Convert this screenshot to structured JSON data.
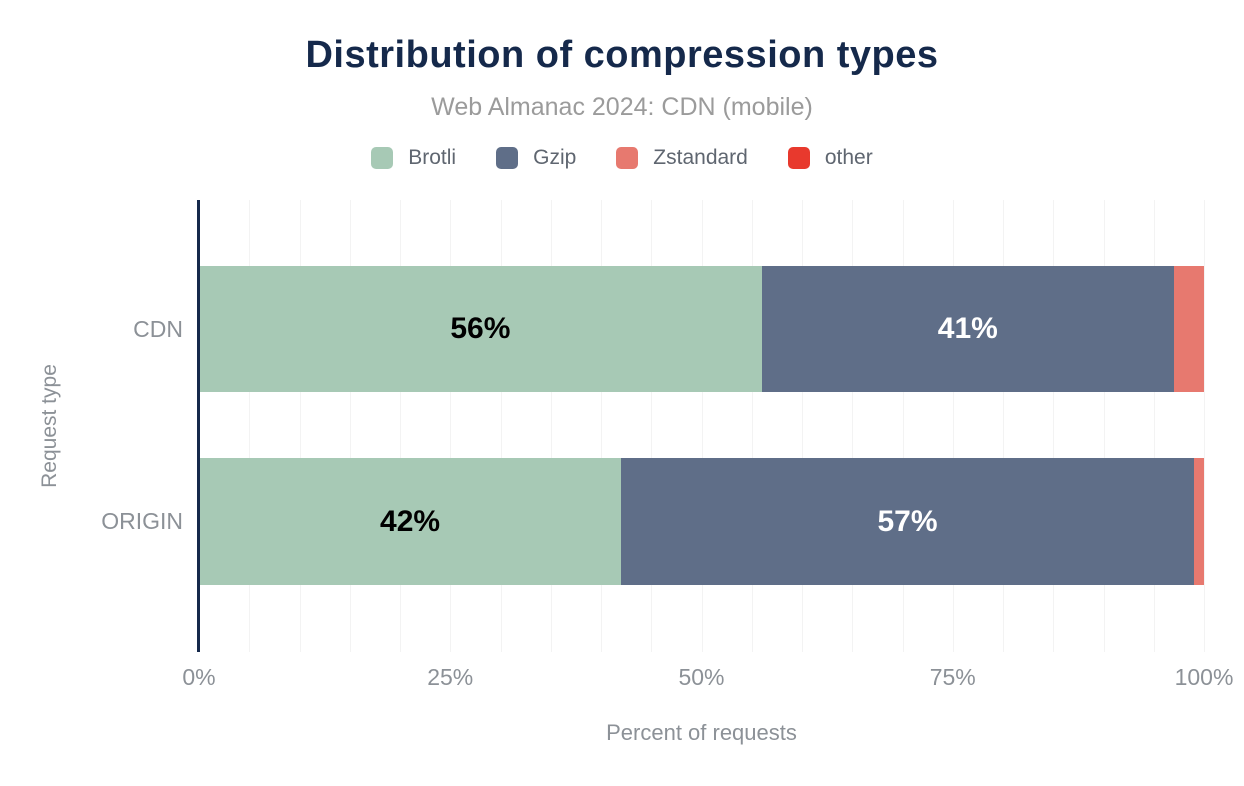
{
  "chart_data": {
    "type": "bar",
    "orientation": "horizontal",
    "stacked": true,
    "title": "Distribution of compression types",
    "subtitle": "Web Almanac 2024: CDN (mobile)",
    "categories": [
      "CDN",
      "ORIGIN"
    ],
    "series": [
      {
        "name": "Brotli",
        "color": "#a7c9b5",
        "values": [
          56,
          42
        ],
        "data_labels": [
          "56%",
          "42%"
        ],
        "label_color": "#000000"
      },
      {
        "name": "Gzip",
        "color": "#5f6e88",
        "values": [
          41,
          57
        ],
        "data_labels": [
          "41%",
          "57%"
        ],
        "label_color": "#ffffff"
      },
      {
        "name": "Zstandard",
        "color": "#e7796f",
        "values": [
          3,
          1
        ],
        "data_labels": [
          "",
          ""
        ],
        "label_color": "#000000"
      },
      {
        "name": "other",
        "color": "#e8392d",
        "values": [
          0,
          0
        ],
        "data_labels": [
          "",
          ""
        ],
        "label_color": "#ffffff"
      }
    ],
    "xlabel": "Percent of requests",
    "ylabel": "Request type",
    "x_ticks": [
      {
        "label": "0%",
        "pos": 0
      },
      {
        "label": "25%",
        "pos": 25
      },
      {
        "label": "50%",
        "pos": 50
      },
      {
        "label": "75%",
        "pos": 75
      },
      {
        "label": "100%",
        "pos": 100
      }
    ],
    "xlim": [
      0,
      100
    ],
    "grid": {
      "vertical_every_percent": 5,
      "color": "#f3f3f3"
    },
    "legend_position": "top",
    "colors": {
      "title": "#15294b",
      "subtitle": "#9b9b9b",
      "axis_line": "#15294b",
      "axis_text": "#8c9197",
      "legend_text": "#5f6670"
    }
  }
}
